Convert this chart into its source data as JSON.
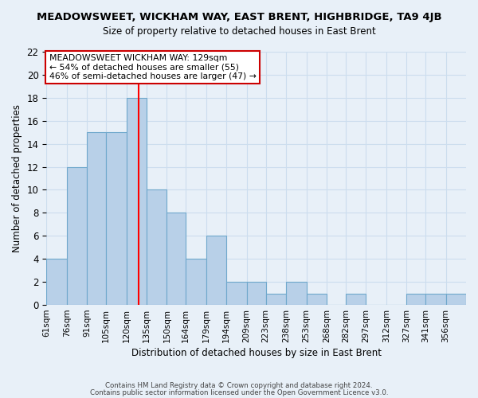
{
  "title": "MEADOWSWEET, WICKHAM WAY, EAST BRENT, HIGHBRIDGE, TA9 4JB",
  "subtitle": "Size of property relative to detached houses in East Brent",
  "xlabel": "Distribution of detached houses by size in East Brent",
  "ylabel": "Number of detached properties",
  "bin_labels": [
    "61sqm",
    "76sqm",
    "91sqm",
    "105sqm",
    "120sqm",
    "135sqm",
    "150sqm",
    "164sqm",
    "179sqm",
    "194sqm",
    "209sqm",
    "223sqm",
    "238sqm",
    "253sqm",
    "268sqm",
    "282sqm",
    "297sqm",
    "312sqm",
    "327sqm",
    "341sqm",
    "356sqm"
  ],
  "bar_heights": [
    4,
    12,
    15,
    15,
    18,
    10,
    8,
    4,
    6,
    2,
    2,
    1,
    2,
    1,
    0,
    1,
    0,
    0,
    1,
    1,
    1
  ],
  "bar_color": "#b8d0e8",
  "bar_edge_color": "#6fa8cc",
  "vline_x": 129,
  "bin_edges": [
    61,
    76,
    91,
    105,
    120,
    135,
    150,
    164,
    179,
    194,
    209,
    223,
    238,
    253,
    268,
    282,
    297,
    312,
    327,
    341,
    356,
    371
  ],
  "annotation_text": "MEADOWSWEET WICKHAM WAY: 129sqm\n← 54% of detached houses are smaller (55)\n46% of semi-detached houses are larger (47) →",
  "annotation_box_color": "#ffffff",
  "annotation_box_edge_color": "#cc0000",
  "ylim": [
    0,
    22
  ],
  "yticks": [
    0,
    2,
    4,
    6,
    8,
    10,
    12,
    14,
    16,
    18,
    20,
    22
  ],
  "grid_color": "#ccddee",
  "background_color": "#e8f0f8",
  "footer_line1": "Contains HM Land Registry data © Crown copyright and database right 2024.",
  "footer_line2": "Contains public sector information licensed under the Open Government Licence v3.0."
}
